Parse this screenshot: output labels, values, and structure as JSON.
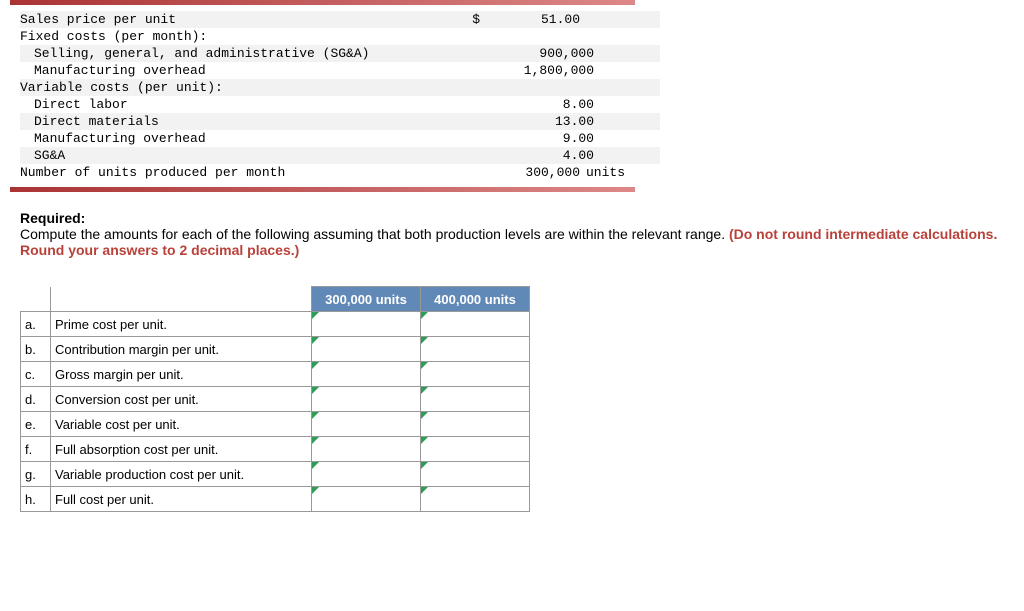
{
  "top_data": {
    "rows": [
      {
        "label": "Sales price per unit",
        "indent": 0,
        "dollar": "$",
        "value": "51.00",
        "suffix": "",
        "shaded": true
      },
      {
        "label": "Fixed costs (per month):",
        "indent": 0,
        "dollar": "",
        "value": "",
        "suffix": "",
        "shaded": false
      },
      {
        "label": "Selling, general, and administrative (SG&A)",
        "indent": 1,
        "dollar": "",
        "value": "900,000",
        "suffix": "",
        "shaded": true
      },
      {
        "label": "Manufacturing overhead",
        "indent": 1,
        "dollar": "",
        "value": "1,800,000",
        "suffix": "",
        "shaded": false
      },
      {
        "label": "Variable costs (per unit):",
        "indent": 0,
        "dollar": "",
        "value": "",
        "suffix": "",
        "shaded": true
      },
      {
        "label": "Direct labor",
        "indent": 1,
        "dollar": "",
        "value": "8.00",
        "suffix": "",
        "shaded": false
      },
      {
        "label": "Direct materials",
        "indent": 1,
        "dollar": "",
        "value": "13.00",
        "suffix": "",
        "shaded": true
      },
      {
        "label": "Manufacturing overhead",
        "indent": 1,
        "dollar": "",
        "value": "9.00",
        "suffix": "",
        "shaded": false
      },
      {
        "label": "SG&A",
        "indent": 1,
        "dollar": "",
        "value": "4.00",
        "suffix": "",
        "shaded": true
      },
      {
        "label": "Number of units produced per month",
        "indent": 0,
        "dollar": "",
        "value": "300,000",
        "suffix": "units",
        "shaded": false
      }
    ]
  },
  "required": {
    "heading": "Required:",
    "text_1": "Compute the amounts for each of the following assuming that both production levels are within the relevant range. ",
    "text_2": "(Do not round intermediate calculations. Round your answers to 2 decimal places.)"
  },
  "answer_table": {
    "header_col1": "300,000 units",
    "header_col2": "400,000 units",
    "rows": [
      {
        "idx": "a.",
        "label": "Prime cost per unit."
      },
      {
        "idx": "b.",
        "label": "Contribution margin per unit."
      },
      {
        "idx": "c.",
        "label": "Gross margin per unit."
      },
      {
        "idx": "d.",
        "label": "Conversion cost per unit."
      },
      {
        "idx": "e.",
        "label": "Variable cost per unit."
      },
      {
        "idx": "f.",
        "label": "Full absorption cost per unit."
      },
      {
        "idx": "g.",
        "label": "Variable production cost per unit."
      },
      {
        "idx": "h.",
        "label": "Full cost per unit."
      }
    ]
  }
}
